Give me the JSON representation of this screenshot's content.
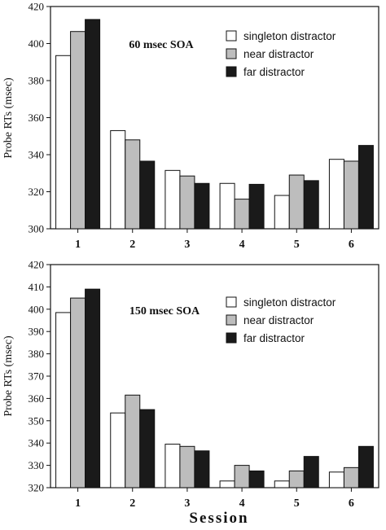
{
  "figure": {
    "xlabel": "Session"
  },
  "colors": {
    "singleton": "#ffffff",
    "near": "#bdbdbd",
    "far": "#1a1a1a",
    "stroke": "#111111"
  },
  "chart_data": [
    {
      "type": "bar",
      "title": "60 msec SOA",
      "ylabel": "Probe RTs (msec)",
      "ylim": [
        300,
        420
      ],
      "yticks": [
        300,
        320,
        340,
        360,
        380,
        400,
        420
      ],
      "categories": [
        "1",
        "2",
        "3",
        "4",
        "5",
        "6"
      ],
      "legend_position": "top-right",
      "series": [
        {
          "name": "singleton  distractor",
          "key": "singleton",
          "values": [
            393.5,
            353,
            331.5,
            324.5,
            318,
            337.5
          ]
        },
        {
          "name": "near distractor",
          "key": "near",
          "values": [
            406.5,
            348,
            328.5,
            316,
            329,
            336.5
          ]
        },
        {
          "name": "far distractor",
          "key": "far",
          "values": [
            413,
            336.5,
            324.5,
            324,
            326,
            345
          ]
        }
      ]
    },
    {
      "type": "bar",
      "title": "150 msec SOA",
      "ylabel": "Probe RTs (msec)",
      "ylim": [
        320,
        420
      ],
      "yticks": [
        320,
        330,
        340,
        350,
        360,
        370,
        380,
        390,
        400,
        410,
        420
      ],
      "categories": [
        "1",
        "2",
        "3",
        "4",
        "5",
        "6"
      ],
      "legend_position": "top-right",
      "series": [
        {
          "name": "singleton  distractor",
          "key": "singleton",
          "values": [
            398.5,
            353.5,
            339.5,
            323,
            323,
            327
          ]
        },
        {
          "name": "near distractor",
          "key": "near",
          "values": [
            405,
            361.5,
            338.5,
            330,
            327.5,
            329
          ]
        },
        {
          "name": "far distractor",
          "key": "far",
          "values": [
            409,
            355,
            336.5,
            327.5,
            334,
            338.5
          ]
        }
      ]
    }
  ]
}
